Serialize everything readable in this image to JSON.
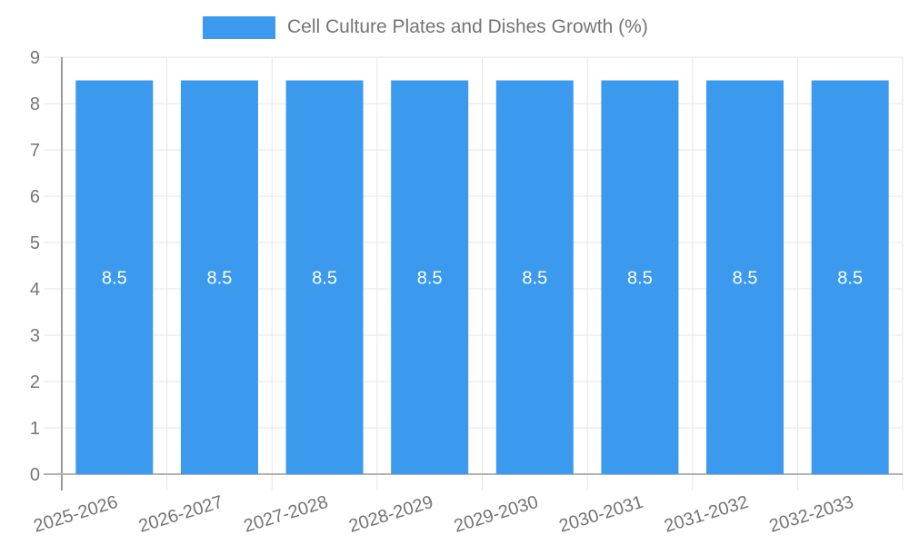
{
  "chart_data": {
    "type": "bar",
    "title": "",
    "legend": {
      "label": "Cell Culture Plates and Dishes Growth (%)",
      "position": "top"
    },
    "categories": [
      "2025-2026",
      "2026-2027",
      "2027-2028",
      "2028-2029",
      "2029-2030",
      "2030-2031",
      "2031-2032",
      "2032-2033"
    ],
    "series": [
      {
        "name": "Cell Culture Plates and Dishes Growth (%)",
        "color": "#3b99ee",
        "values": [
          8.5,
          8.5,
          8.5,
          8.5,
          8.5,
          8.5,
          8.5,
          8.5
        ]
      }
    ],
    "value_labels": [
      "8.5",
      "8.5",
      "8.5",
      "8.5",
      "8.5",
      "8.5",
      "8.5",
      "8.5"
    ],
    "xlabel": "",
    "ylabel": "",
    "ylim": [
      0,
      9
    ],
    "yticks": [
      "0",
      "1",
      "2",
      "3",
      "4",
      "5",
      "6",
      "7",
      "8",
      "9"
    ],
    "grid": true,
    "x_label_rotation_deg": -17
  },
  "colors": {
    "bar": "#3b99ee",
    "grid": "#e6e6e6",
    "axis_line": "#9a9a9a",
    "baseline": "#b3b3b3",
    "tick_text": "#757575",
    "legend_text": "#757575",
    "value_label_text": "#ffffff",
    "background": "#ffffff"
  }
}
